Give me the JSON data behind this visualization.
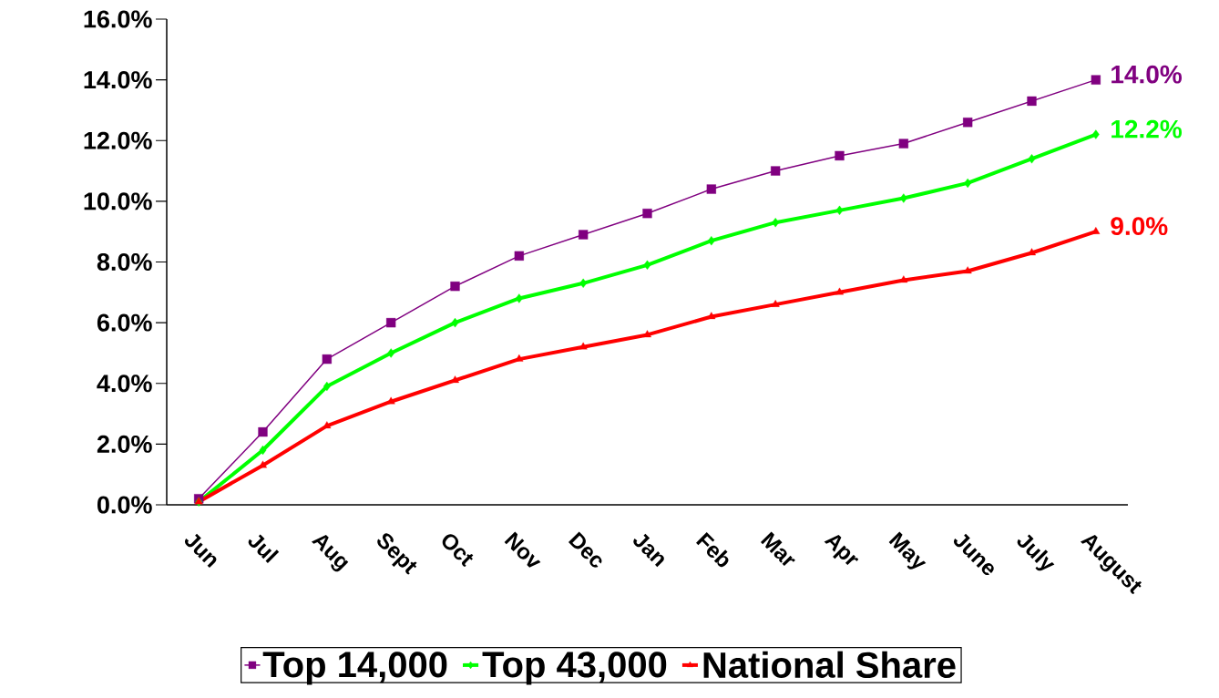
{
  "chart_data": {
    "type": "line",
    "categories": [
      "Jun",
      "Jul",
      "Aug",
      "Sept",
      "Oct",
      "Nov",
      "Dec",
      "Jan",
      "Feb",
      "Mar",
      "Apr",
      "May",
      "June",
      "July",
      "August"
    ],
    "series": [
      {
        "name": "Top 14,000",
        "color": "#800080",
        "marker": "square",
        "values": [
          0.2,
          2.4,
          4.8,
          6.0,
          7.2,
          8.2,
          8.9,
          9.6,
          10.4,
          11.0,
          11.5,
          11.9,
          12.6,
          13.3,
          14.0
        ],
        "value_labels": [
          null,
          null,
          null,
          null,
          null,
          null,
          null,
          null,
          null,
          null,
          null,
          null,
          null,
          null,
          "14.0%"
        ]
      },
      {
        "name": "Top 43,000",
        "color": "#00ff00",
        "marker": "diamond",
        "values": [
          0.1,
          1.8,
          3.9,
          5.0,
          6.0,
          6.8,
          7.3,
          7.9,
          8.7,
          9.3,
          9.7,
          10.1,
          10.6,
          11.4,
          12.2
        ],
        "value_labels": [
          null,
          null,
          null,
          null,
          null,
          null,
          null,
          null,
          null,
          null,
          null,
          null,
          null,
          null,
          "12.2%"
        ]
      },
      {
        "name": "National Share",
        "color": "#ff0000",
        "marker": "triangle",
        "values": [
          0.1,
          1.3,
          2.6,
          3.4,
          4.1,
          4.8,
          5.2,
          5.6,
          6.2,
          6.6,
          7.0,
          7.4,
          7.7,
          8.3,
          9.0
        ],
        "value_labels": [
          null,
          null,
          null,
          null,
          null,
          null,
          null,
          null,
          null,
          null,
          null,
          null,
          null,
          null,
          "9.0%"
        ]
      }
    ],
    "ylim": [
      0,
      16
    ],
    "yticks": [
      {
        "value": 0,
        "label": "0.0%"
      },
      {
        "value": 2,
        "label": "2.0%"
      },
      {
        "value": 4,
        "label": "4.0%"
      },
      {
        "value": 6,
        "label": "6.0%"
      },
      {
        "value": 8,
        "label": "8.0%"
      },
      {
        "value": 10,
        "label": "10.0%"
      },
      {
        "value": 12,
        "label": "12.0%"
      },
      {
        "value": 14,
        "label": "14.0%"
      },
      {
        "value": 16,
        "label": "16.0%"
      }
    ],
    "grid": false,
    "legend": "bottom"
  }
}
